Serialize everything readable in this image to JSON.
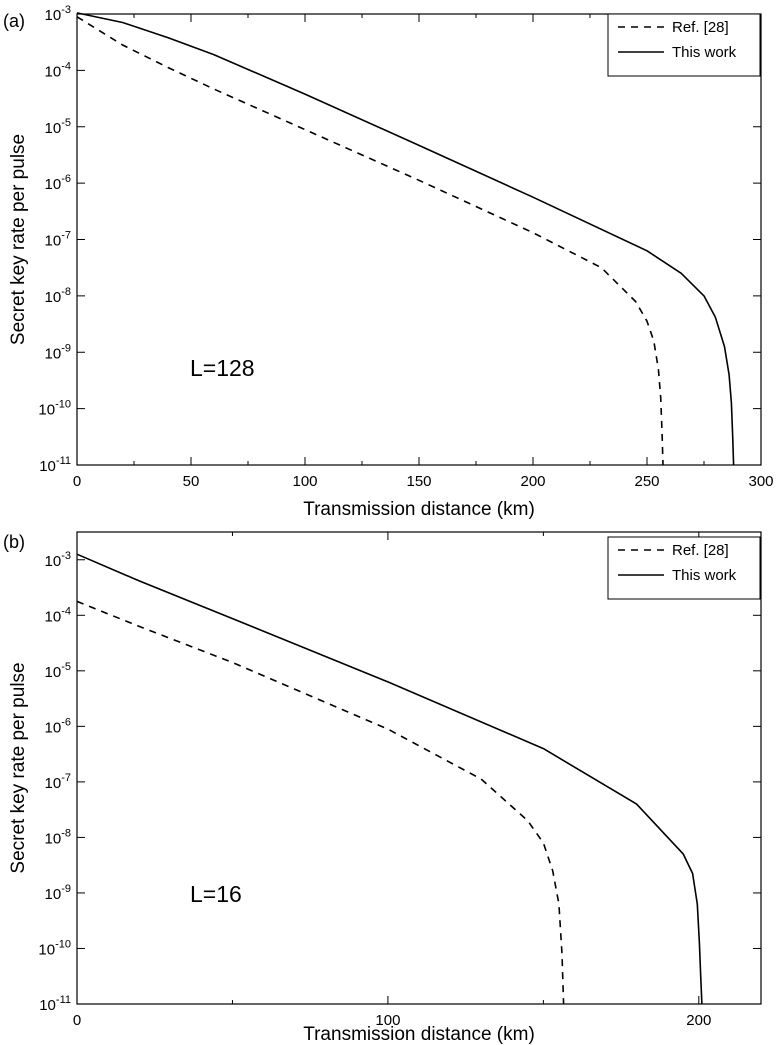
{
  "chart_data": [
    {
      "type": "line",
      "panel_label": "(a)",
      "annotation": "L=128",
      "xlabel": "Transmission distance (km)",
      "ylabel": "Secret key rate per pulse",
      "xlim": [
        0,
        300
      ],
      "ylim_exp": [
        -11,
        -3
      ],
      "yscale": "log",
      "x_ticks": [
        0,
        50,
        100,
        150,
        200,
        250,
        300
      ],
      "y_ticks_exp": [
        -3,
        -4,
        -5,
        -6,
        -7,
        -8,
        -9,
        -10,
        -11
      ],
      "legend_position": "top-right",
      "series": [
        {
          "name": "Ref. [28]",
          "style": "dashed",
          "x": [
            0,
            10,
            20,
            40,
            60,
            100,
            150,
            200,
            230,
            245,
            250,
            253,
            255,
            256,
            256.6,
            257
          ],
          "log10_y": [
            -3.05,
            -3.3,
            -3.55,
            -3.95,
            -4.33,
            -5.05,
            -5.95,
            -6.88,
            -7.5,
            -8.1,
            -8.45,
            -8.8,
            -9.3,
            -9.8,
            -10.4,
            -11
          ]
        },
        {
          "name": "This work",
          "style": "solid",
          "x": [
            0,
            20,
            40,
            60,
            100,
            150,
            200,
            250,
            265,
            275,
            280,
            284,
            286,
            287,
            287.6,
            288
          ],
          "log10_y": [
            -2.98,
            -3.15,
            -3.42,
            -3.72,
            -4.42,
            -5.33,
            -6.25,
            -7.2,
            -7.6,
            -8.0,
            -8.38,
            -8.9,
            -9.4,
            -9.9,
            -10.5,
            -11
          ]
        }
      ]
    },
    {
      "type": "line",
      "panel_label": "(b)",
      "annotation": "L=16",
      "xlabel": "Transmission distance (km)",
      "ylabel": "Secret key rate per pulse",
      "xlim": [
        0,
        220
      ],
      "ylim_exp": [
        -11,
        -2.5
      ],
      "yscale": "log",
      "x_ticks": [
        0,
        100,
        200
      ],
      "x_minor_ticks": [
        50,
        150
      ],
      "y_ticks_exp": [
        -3,
        -4,
        -5,
        -6,
        -7,
        -8,
        -9,
        -10,
        -11
      ],
      "legend_position": "top-right",
      "series": [
        {
          "name": "Ref. [28]",
          "style": "dashed",
          "x": [
            0,
            20,
            50,
            100,
            130,
            145,
            150,
            153,
            155,
            156,
            156.5
          ],
          "log10_y": [
            -3.75,
            -4.2,
            -4.85,
            -6.05,
            -6.95,
            -7.7,
            -8.1,
            -8.6,
            -9.2,
            -10.1,
            -11
          ]
        },
        {
          "name": "This work",
          "style": "solid",
          "x": [
            0,
            20,
            50,
            100,
            150,
            180,
            195,
            198,
            199.5,
            200.2,
            200.6,
            201
          ],
          "log10_y": [
            -2.9,
            -3.38,
            -4.06,
            -5.2,
            -6.4,
            -7.4,
            -8.3,
            -8.65,
            -9.2,
            -9.9,
            -10.5,
            -11
          ]
        }
      ]
    }
  ]
}
